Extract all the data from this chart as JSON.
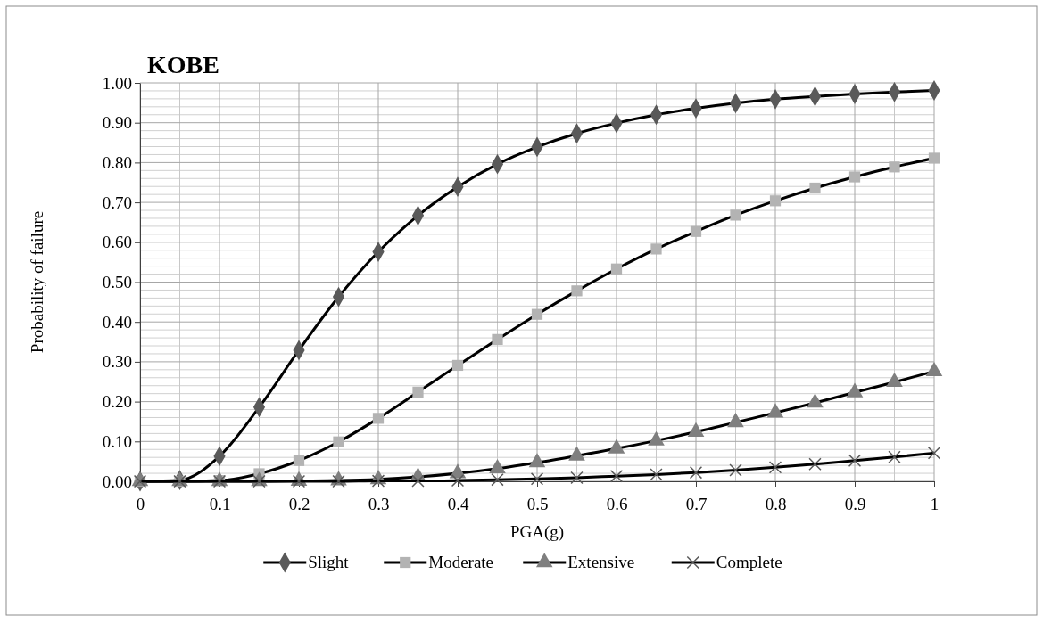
{
  "chart_data": {
    "type": "line",
    "title": "KOBE",
    "xlabel": "PGA(g)",
    "ylabel": "Probability of failure",
    "x": [
      0,
      0.05,
      0.1,
      0.15,
      0.2,
      0.25,
      0.3,
      0.35,
      0.4,
      0.45,
      0.5,
      0.55,
      0.6,
      0.65,
      0.7,
      0.75,
      0.8,
      0.85,
      0.9,
      0.95,
      1
    ],
    "series": [
      {
        "name": "Slight",
        "color": "#595959",
        "marker": "diamond",
        "values": [
          0,
          0.003,
          0.063,
          0.186,
          0.329,
          0.463,
          0.576,
          0.667,
          0.739,
          0.796,
          0.839,
          0.873,
          0.899,
          0.92,
          0.936,
          0.949,
          0.959,
          0.966,
          0.972,
          0.977,
          0.981
        ]
      },
      {
        "name": "Moderate",
        "color": "#b3b3b3",
        "marker": "square",
        "values": [
          0,
          0,
          0.002,
          0.019,
          0.052,
          0.099,
          0.158,
          0.224,
          0.291,
          0.356,
          0.419,
          0.478,
          0.533,
          0.583,
          0.627,
          0.668,
          0.704,
          0.736,
          0.764,
          0.789,
          0.811
        ]
      },
      {
        "name": "Extensive",
        "color": "#7f7f7f",
        "marker": "triangle",
        "values": [
          0,
          0,
          0,
          0,
          0.001,
          0.002,
          0.005,
          0.011,
          0.02,
          0.032,
          0.047,
          0.064,
          0.082,
          0.102,
          0.124,
          0.148,
          0.172,
          0.197,
          0.223,
          0.249,
          0.276
        ]
      },
      {
        "name": "Complete",
        "color": "#595959",
        "marker": "cross",
        "values": [
          0,
          0,
          0,
          0,
          0,
          0,
          0.001,
          0.001,
          0.002,
          0.004,
          0.006,
          0.009,
          0.013,
          0.017,
          0.022,
          0.028,
          0.035,
          0.043,
          0.052,
          0.061,
          0.071
        ]
      }
    ],
    "xlim": [
      0,
      1
    ],
    "xticks": [
      0,
      0.1,
      0.2,
      0.3,
      0.4,
      0.5,
      0.6,
      0.7,
      0.8,
      0.9,
      1
    ],
    "ylim": [
      0,
      1
    ],
    "yticks": [
      {
        "value": 0,
        "label": "0.00"
      },
      {
        "value": 0.1,
        "label": "0.10"
      },
      {
        "value": 0.2,
        "label": "0.20"
      },
      {
        "value": 0.3,
        "label": "0.30"
      },
      {
        "value": 0.4,
        "label": "0.40"
      },
      {
        "value": 0.5,
        "label": "0.50"
      },
      {
        "value": 0.6,
        "label": "0.60"
      },
      {
        "value": 0.7,
        "label": "0.70"
      },
      {
        "value": 0.8,
        "label": "0.80"
      },
      {
        "value": 0.9,
        "label": "0.90"
      },
      {
        "value": 1,
        "label": "1.00"
      }
    ],
    "grid": true,
    "legend": "bottom",
    "line_style": "solid"
  }
}
